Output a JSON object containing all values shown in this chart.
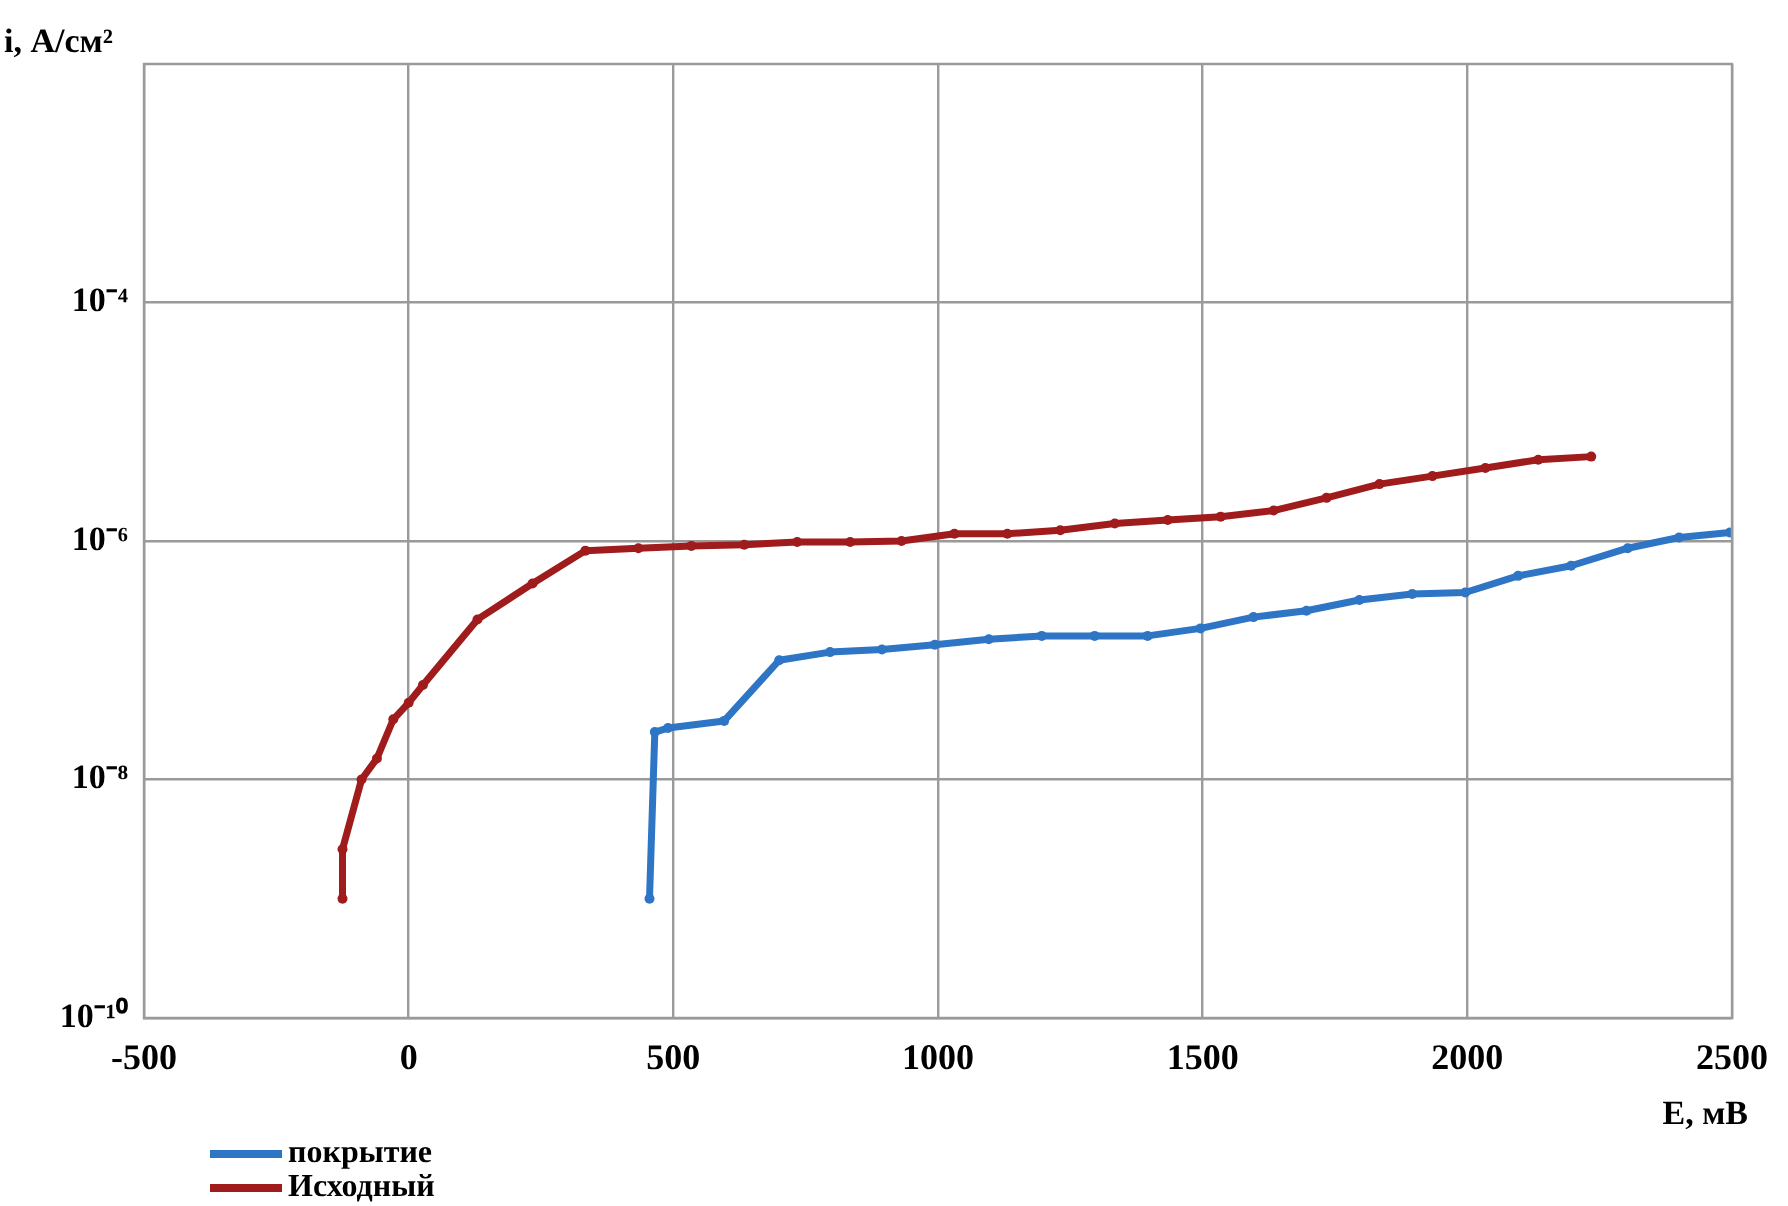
{
  "chart_data": {
    "type": "line",
    "xlabel": "E, мВ",
    "ylabel": "i, А/см²",
    "log": "y",
    "grid": true,
    "legend": "bottom",
    "marker": "circle",
    "line_style": "solid",
    "xlim": [
      -500,
      2500
    ],
    "xticks": [
      -500,
      0,
      500,
      1000,
      1500,
      2000,
      2500
    ],
    "ylim": [
      1e-10,
      0.01
    ],
    "yticks": [
      {
        "value": 1e-10,
        "label": "10⁻¹⁰"
      },
      {
        "value": 1e-08,
        "label": "10⁻⁸"
      },
      {
        "value": 1e-06,
        "label": "10⁻⁶"
      },
      {
        "value": 0.0001,
        "label": "10⁻⁴"
      }
    ],
    "series": [
      {
        "name": "покрытие",
        "color": "#2e75c6",
        "x": [
          455,
          465,
          490,
          596,
          700,
          796,
          894,
          994,
          1096,
          1196,
          1296,
          1396,
          1496,
          1596,
          1696,
          1796,
          1896,
          1996,
          2096,
          2196,
          2303,
          2400,
          2496
        ],
        "values": [
          1e-09,
          2.5e-08,
          2.7e-08,
          3.1e-08,
          1e-07,
          1.17e-07,
          1.23e-07,
          1.35e-07,
          1.5e-07,
          1.6e-07,
          1.6e-07,
          1.6e-07,
          1.85e-07,
          2.3e-07,
          2.6e-07,
          3.2e-07,
          3.6e-07,
          3.7e-07,
          5.1e-07,
          6.2e-07,
          8.7e-07,
          1.07e-06,
          1.18e-06
        ]
      },
      {
        "name": "Исходный",
        "color": "#a01c1c",
        "x": [
          -125,
          -125,
          -89,
          -60,
          -29,
          0,
          27,
          130,
          234,
          334,
          434,
          534,
          634,
          734,
          834,
          931,
          1031,
          1131,
          1231,
          1334,
          1434,
          1534,
          1634,
          1734,
          1834,
          1934,
          2034,
          2134,
          2234
        ],
        "values": [
          1e-09,
          2.6e-09,
          1e-08,
          1.5e-08,
          3.2e-08,
          4.4e-08,
          6.2e-08,
          2.2e-07,
          4.4e-07,
          8.3e-07,
          8.7e-07,
          9.1e-07,
          9.3e-07,
          9.8e-07,
          9.8e-07,
          1e-06,
          1.15e-06,
          1.15e-06,
          1.23e-06,
          1.4e-06,
          1.5e-06,
          1.6e-06,
          1.8e-06,
          2.3e-06,
          3e-06,
          3.5e-06,
          4.1e-06,
          4.8e-06,
          5.1e-06
        ]
      }
    ]
  }
}
